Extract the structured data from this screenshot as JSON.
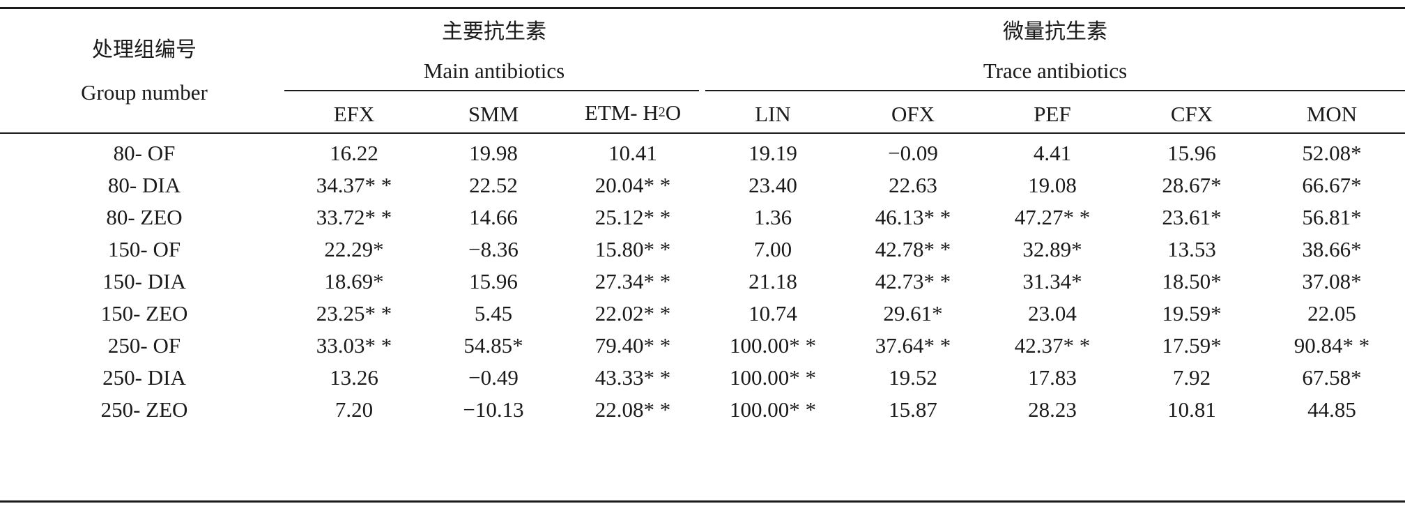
{
  "header": {
    "group_cn": "处理组编号",
    "group_en": "Group number",
    "main_cn": "主要抗生素",
    "main_en": "Main antibiotics",
    "trace_cn": "微量抗生素",
    "trace_en": "Trace antibiotics",
    "columns": [
      "EFX",
      "SMM",
      "ETM- H",
      "LIN",
      "OFX",
      "PEF",
      "CFX",
      "MON"
    ],
    "etm_subscript": "2",
    "etm_suffix": "O"
  },
  "rows": [
    [
      "80- OF",
      "16.22",
      "19.98",
      "10.41",
      "19.19",
      "−0.09",
      "4.41",
      "15.96",
      "52.08*"
    ],
    [
      "80- DIA",
      "34.37* *",
      "22.52",
      "20.04* *",
      "23.40",
      "22.63",
      "19.08",
      "28.67*",
      "66.67*"
    ],
    [
      "80- ZEO",
      "33.72* *",
      "14.66",
      "25.12* *",
      "1.36",
      "46.13* *",
      "47.27* *",
      "23.61*",
      "56.81*"
    ],
    [
      "150- OF",
      "22.29*",
      "−8.36",
      "15.80* *",
      "7.00",
      "42.78* *",
      "32.89*",
      "13.53",
      "38.66*"
    ],
    [
      "150- DIA",
      "18.69*",
      "15.96",
      "27.34* *",
      "21.18",
      "42.73* *",
      "31.34*",
      "18.50*",
      "37.08*"
    ],
    [
      "150- ZEO",
      "23.25* *",
      "5.45",
      "22.02* *",
      "10.74",
      "29.61*",
      "23.04",
      "19.59*",
      "22.05"
    ],
    [
      "250- OF",
      "33.03* *",
      "54.85*",
      "79.40* *",
      "100.00* *",
      "37.64* *",
      "42.37* *",
      "17.59*",
      "90.84* *"
    ],
    [
      "250- DIA",
      "13.26",
      "−0.49",
      "43.33* *",
      "100.00* *",
      "19.52",
      "17.83",
      "7.92",
      "67.58*"
    ],
    [
      "250- ZEO",
      "7.20",
      "−10.13",
      "22.08* *",
      "100.00* *",
      "15.87",
      "28.23",
      "10.81",
      "44.85"
    ]
  ]
}
